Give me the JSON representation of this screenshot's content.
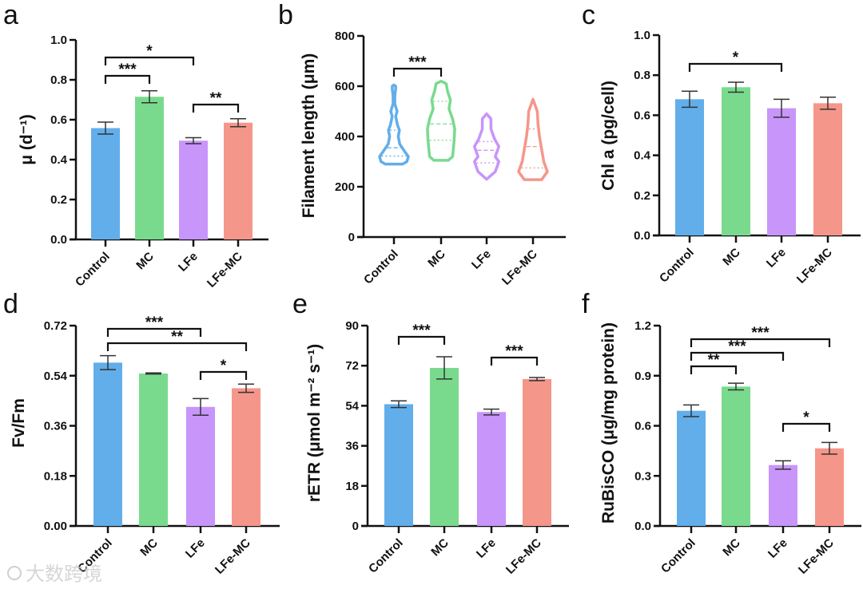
{
  "colors": {
    "Control": "#62AEEA",
    "MC": "#79DA8E",
    "LFe": "#C895FA",
    "LFe-MC": "#F5968A"
  },
  "watermark": "大数跨境",
  "chart_data": [
    {
      "panel": "a",
      "type": "bar",
      "ylabel": "μ (d⁻¹)",
      "categories": [
        "Control",
        "MC",
        "LFe",
        "LFe-MC"
      ],
      "values": [
        0.558,
        0.715,
        0.495,
        0.585
      ],
      "errors": [
        0.03,
        0.03,
        0.015,
        0.02
      ],
      "ylim": [
        0,
        1.0
      ],
      "yticks": [
        "0.0",
        "0.2",
        "0.4",
        "0.6",
        "0.8",
        "1.0"
      ],
      "significance": [
        {
          "pair": [
            0,
            2
          ],
          "label": "*"
        },
        {
          "pair": [
            0,
            1
          ],
          "label": "***"
        },
        {
          "pair": [
            2,
            3
          ],
          "label": "**"
        }
      ]
    },
    {
      "panel": "b",
      "type": "violin",
      "ylabel": "Filament length (μm)",
      "categories": [
        "Control",
        "MC",
        "LFe",
        "LFe-MC"
      ],
      "ylim": [
        0,
        800
      ],
      "yticks": [
        "0",
        "200",
        "400",
        "600",
        "800"
      ],
      "violins": [
        {
          "density": [
            [
              290,
              0.6
            ],
            [
              300,
              0.9
            ],
            [
              320,
              1.0
            ],
            [
              340,
              0.75
            ],
            [
              370,
              0.4
            ],
            [
              400,
              0.3
            ],
            [
              425,
              0.38
            ],
            [
              445,
              0.25
            ],
            [
              480,
              0.12
            ],
            [
              500,
              0.22
            ],
            [
              530,
              0.06
            ],
            [
              560,
              0.06
            ],
            [
              590,
              0.12
            ],
            [
              600,
              0.12
            ],
            [
              605,
              0
            ]
          ],
          "q1": 322,
          "median": 355,
          "q3": 425
        },
        {
          "density": [
            [
              305,
              0.5
            ],
            [
              320,
              0.8
            ],
            [
              380,
              0.9
            ],
            [
              430,
              0.95
            ],
            [
              470,
              0.8
            ],
            [
              510,
              0.55
            ],
            [
              545,
              0.65
            ],
            [
              580,
              0.45
            ],
            [
              610,
              0.35
            ],
            [
              620,
              0
            ]
          ],
          "q1": 385,
          "median": 450,
          "q3": 540
        },
        {
          "density": [
            [
              230,
              0
            ],
            [
              260,
              0.6
            ],
            [
              300,
              0.85
            ],
            [
              320,
              0.6
            ],
            [
              360,
              0.85
            ],
            [
              390,
              0.55
            ],
            [
              430,
              0.3
            ],
            [
              470,
              0.3
            ],
            [
              490,
              0
            ]
          ],
          "q1": 295,
          "median": 345,
          "q3": 380
        },
        {
          "density": [
            [
              228,
              0.6
            ],
            [
              260,
              1.0
            ],
            [
              300,
              0.75
            ],
            [
              350,
              0.6
            ],
            [
              400,
              0.45
            ],
            [
              450,
              0.35
            ],
            [
              500,
              0.3
            ],
            [
              548,
              0
            ]
          ],
          "q1": 275,
          "median": 360,
          "q3": 430
        }
      ],
      "significance": [
        {
          "pair": [
            0,
            1
          ],
          "label": "***"
        }
      ]
    },
    {
      "panel": "c",
      "type": "bar",
      "ylabel": "Chl a (pg/cell)",
      "categories": [
        "Control",
        "MC",
        "LFe",
        "LFe-MC"
      ],
      "values": [
        0.68,
        0.74,
        0.635,
        0.66
      ],
      "errors": [
        0.04,
        0.025,
        0.045,
        0.03
      ],
      "ylim": [
        0,
        1.0
      ],
      "yticks": [
        "0.0",
        "0.2",
        "0.4",
        "0.6",
        "0.8",
        "1.0"
      ],
      "significance": [
        {
          "pair": [
            0,
            2
          ],
          "label": "*"
        }
      ]
    },
    {
      "panel": "d",
      "type": "bar",
      "ylabel": "Fv/Fm",
      "categories": [
        "Control",
        "MC",
        "LFe",
        "LFe-MC"
      ],
      "values": [
        0.587,
        0.548,
        0.428,
        0.495
      ],
      "errors": [
        0.025,
        0.002,
        0.03,
        0.015
      ],
      "ylim": [
        0,
        0.72
      ],
      "yticks": [
        "0.00",
        "0.18",
        "0.36",
        "0.54",
        "0.72"
      ],
      "significance": [
        {
          "pair": [
            0,
            2
          ],
          "label": "***"
        },
        {
          "pair": [
            0,
            3
          ],
          "label": "**"
        },
        {
          "pair": [
            2,
            3
          ],
          "label": "*"
        }
      ]
    },
    {
      "panel": "e",
      "type": "bar",
      "ylabel": "rETR (μmol m⁻² s⁻¹)",
      "categories": [
        "Control",
        "MC",
        "LFe",
        "LFe-MC"
      ],
      "values": [
        54.7,
        71.0,
        51.2,
        66.0
      ],
      "errors": [
        1.5,
        5.0,
        1.3,
        0.7
      ],
      "ylim": [
        0,
        90
      ],
      "yticks": [
        "0",
        "18",
        "36",
        "54",
        "72",
        "90"
      ],
      "significance": [
        {
          "pair": [
            0,
            1
          ],
          "label": "***"
        },
        {
          "pair": [
            2,
            3
          ],
          "label": "***"
        }
      ]
    },
    {
      "panel": "f",
      "type": "bar",
      "ylabel": "RuBisCO (μg/mg protein)",
      "categories": [
        "Control",
        "MC",
        "LFe",
        "LFe-MC"
      ],
      "values": [
        0.69,
        0.835,
        0.365,
        0.465
      ],
      "errors": [
        0.035,
        0.02,
        0.025,
        0.035
      ],
      "ylim": [
        0,
        1.2
      ],
      "yticks": [
        "0.0",
        "0.3",
        "0.6",
        "0.9",
        "1.2"
      ],
      "significance": [
        {
          "pair": [
            0,
            3
          ],
          "label": "***"
        },
        {
          "pair": [
            0,
            2
          ],
          "label": "***"
        },
        {
          "pair": [
            0,
            1
          ],
          "label": "**"
        },
        {
          "pair": [
            2,
            3
          ],
          "label": "*"
        }
      ]
    }
  ]
}
